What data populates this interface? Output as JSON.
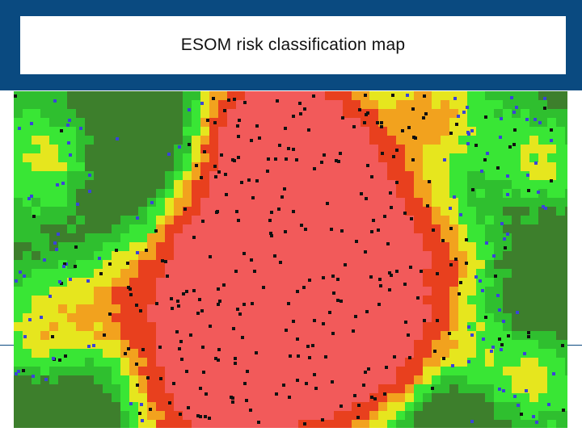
{
  "slide": {
    "title": "ESOM risk classification map"
  },
  "colors": {
    "header_band": "#0a4a80",
    "low_risk_dark": "#3d7f2c",
    "low_risk": "#2fbf2f",
    "low_risk_bright": "#39e635",
    "medium_risk": "#e6e61e",
    "medium_high_risk": "#f2a21e",
    "high_risk": "#e8401e",
    "high_risk_peak": "#f25a5a",
    "marker_black": "#111111",
    "marker_blue": "#3a44d8"
  },
  "map": {
    "type": "emergent-self-organizing-map",
    "markers": [
      "black-square",
      "blue-square"
    ]
  }
}
